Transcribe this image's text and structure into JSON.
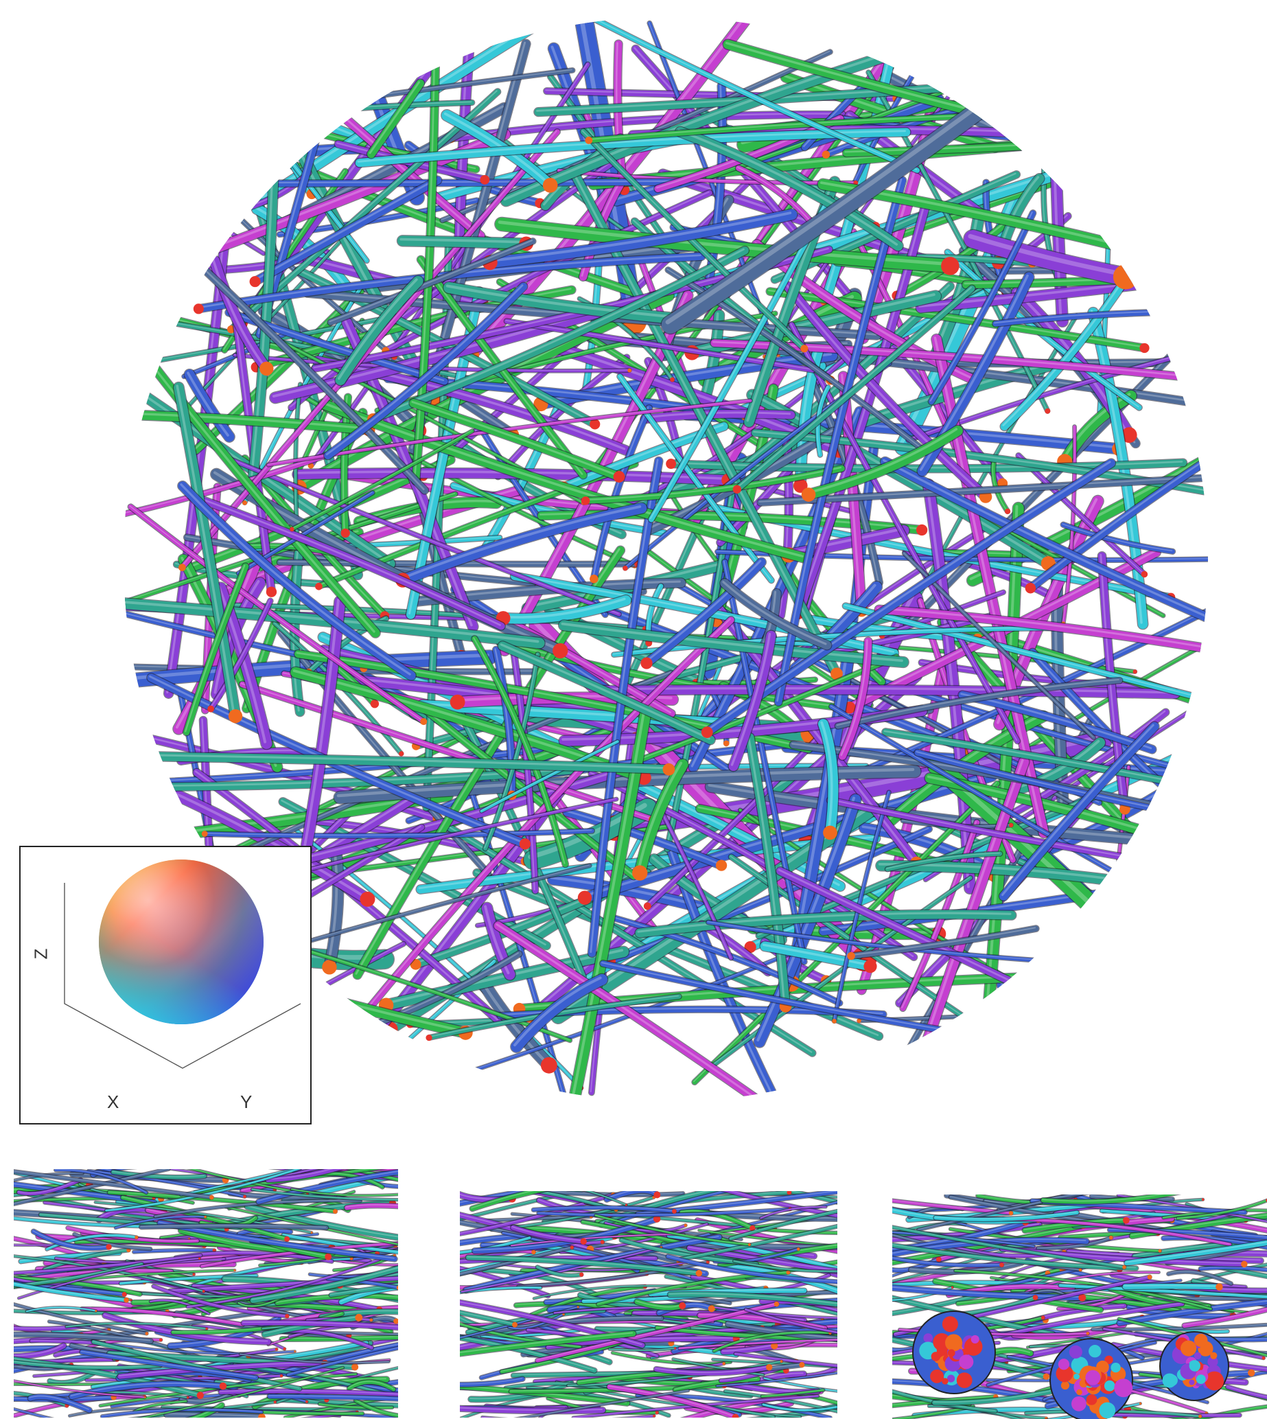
{
  "legend": {
    "axis_z": "Z",
    "axis_x": "X",
    "axis_y": "Y",
    "sphere_icon": "orientation-color-sphere"
  },
  "palette": {
    "green": "#2fb84a",
    "teal": "#2fa58f",
    "blue": "#3a5fd0",
    "purple": "#8a3fd6",
    "magenta": "#c53fd0",
    "cyan": "#35c8d8",
    "orange": "#f06a1f",
    "red": "#e8352c",
    "slate": "#4f6c9a"
  }
}
